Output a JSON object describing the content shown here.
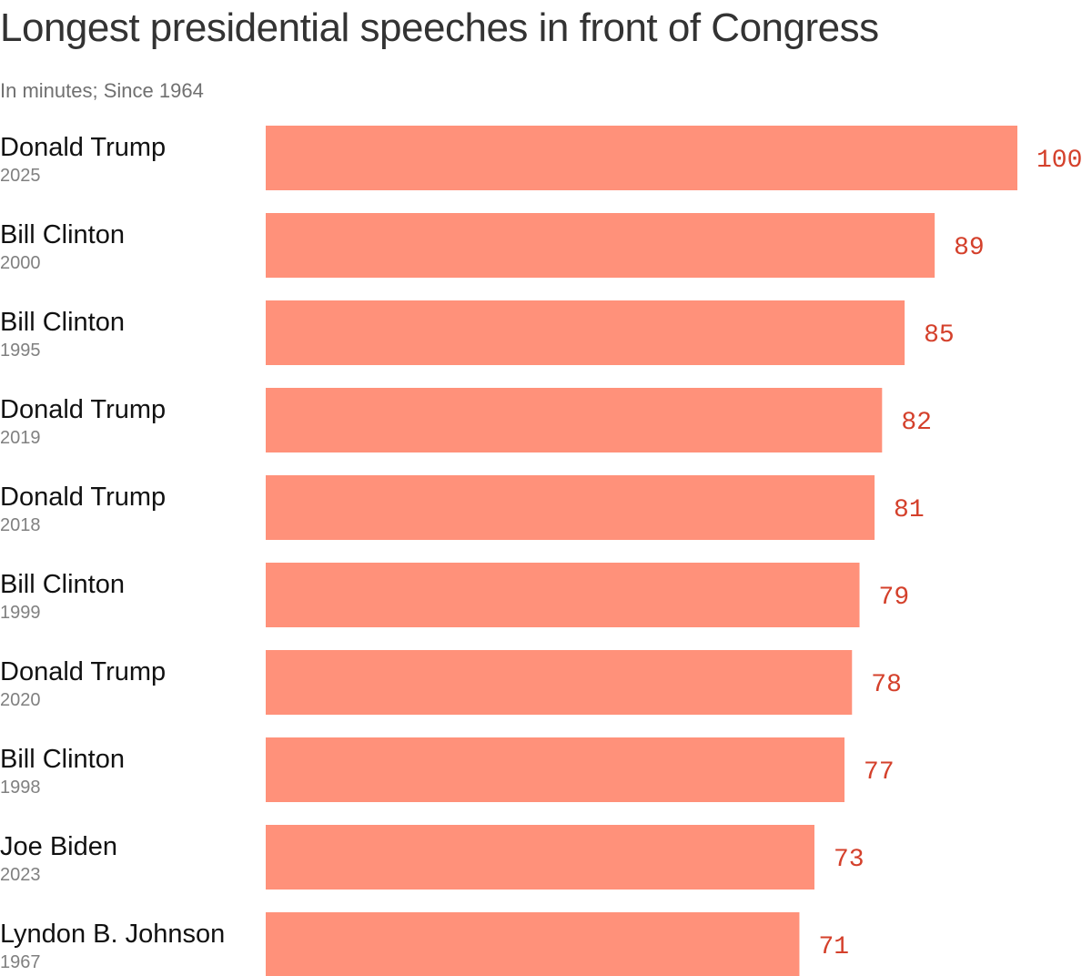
{
  "chart_data": {
    "type": "bar",
    "orientation": "horizontal",
    "title": "Longest presidential speeches in front of Congress",
    "subtitle": "In minutes; Since 1964",
    "categories": [
      {
        "name": "Donald Trump",
        "year": "2025"
      },
      {
        "name": "Bill Clinton",
        "year": "2000"
      },
      {
        "name": "Bill Clinton",
        "year": "1995"
      },
      {
        "name": "Donald Trump",
        "year": "2019"
      },
      {
        "name": "Donald Trump",
        "year": "2018"
      },
      {
        "name": "Bill Clinton",
        "year": "1999"
      },
      {
        "name": "Donald Trump",
        "year": "2020"
      },
      {
        "name": "Bill Clinton",
        "year": "1998"
      },
      {
        "name": "Joe Biden",
        "year": "2023"
      },
      {
        "name": "Lyndon B. Johnson",
        "year": "1967"
      }
    ],
    "values": [
      100,
      89,
      85,
      82,
      81,
      79,
      78,
      77,
      73,
      71
    ],
    "xlim": [
      0,
      100
    ],
    "grid": false,
    "legend": "none",
    "colors": {
      "bar": "#ff917a",
      "value_label": "#d4402b",
      "title": "#333333",
      "subtitle": "#707070",
      "name": "#111111",
      "year": "#808080"
    }
  }
}
